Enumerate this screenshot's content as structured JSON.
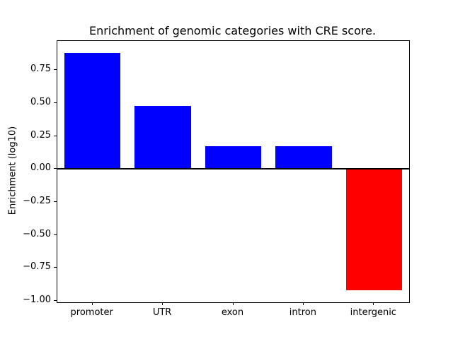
{
  "chart_data": {
    "type": "bar",
    "title": "Enrichment of genomic categories with CRE score.",
    "xlabel": "",
    "ylabel": "Enrichment (log10)",
    "categories": [
      "promoter",
      "UTR",
      "exon",
      "intron",
      "intergenic"
    ],
    "values": [
      0.88,
      0.48,
      0.17,
      0.17,
      -0.92
    ],
    "series": [
      {
        "name": "Enrichment (log10)",
        "values": [
          0.88,
          0.48,
          0.17,
          0.17,
          -0.92
        ]
      }
    ],
    "bar_colors": [
      "#0000ff",
      "#0000ff",
      "#0000ff",
      "#0000ff",
      "#ff0000"
    ],
    "positive_color": "#0000ff",
    "negative_color": "#ff0000",
    "ylim": [
      -1.01,
      0.97
    ],
    "yticks": [
      {
        "label": "0.75",
        "value": 0.75
      },
      {
        "label": "0.50",
        "value": 0.5
      },
      {
        "label": "0.25",
        "value": 0.25
      },
      {
        "label": "0.00",
        "value": 0.0
      },
      {
        "label": "−0.25",
        "value": -0.25
      },
      {
        "label": "−0.50",
        "value": -0.5
      },
      {
        "label": "−0.75",
        "value": -0.75
      },
      {
        "label": "−1.00",
        "value": -1.0
      }
    ],
    "grid": false,
    "legend": "none",
    "zero_line": true
  }
}
